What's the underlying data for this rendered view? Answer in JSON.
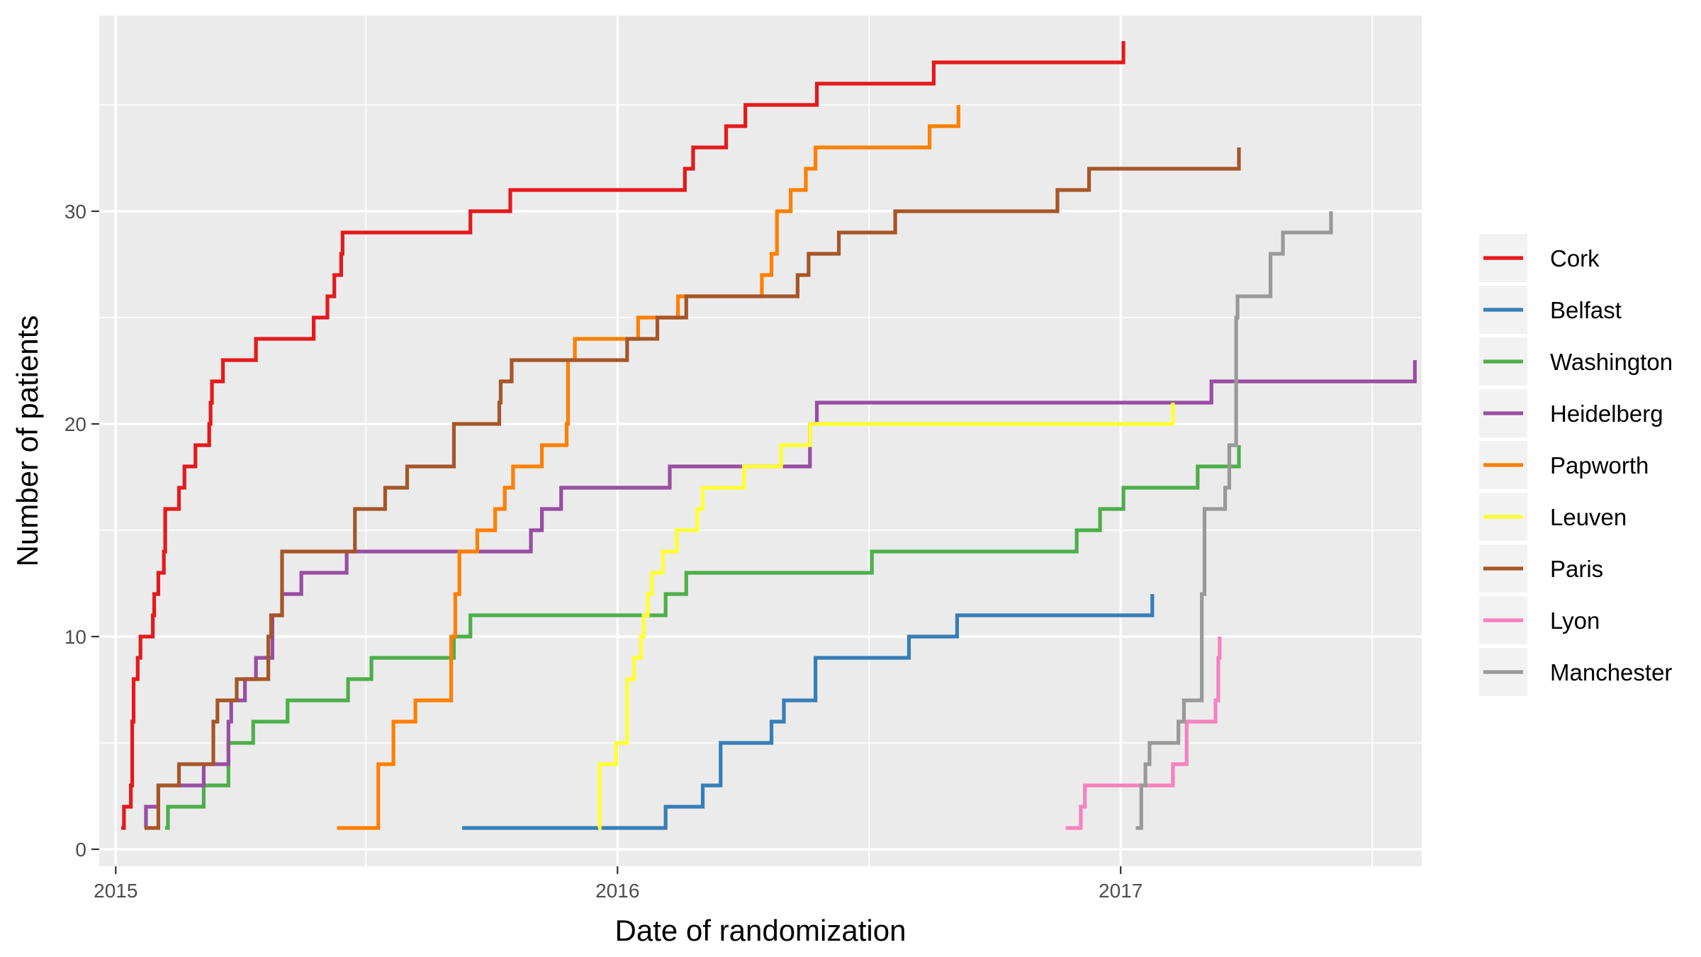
{
  "chart_data": {
    "type": "line",
    "step": true,
    "xlabel": "Date of randomization",
    "ylabel": "Number of patients",
    "xlim": [
      "2014-12-20",
      "2017-08-08"
    ],
    "ylim": [
      -0.8,
      39.2
    ],
    "x_ticks": [
      {
        "date": "2015-01-01",
        "label": "2015"
      },
      {
        "date": "2016-01-01",
        "label": "2016"
      },
      {
        "date": "2017-01-01",
        "label": "2017"
      }
    ],
    "y_ticks": [
      {
        "value": 0,
        "label": "0"
      },
      {
        "value": 10,
        "label": "10"
      },
      {
        "value": 20,
        "label": "20"
      },
      {
        "value": 30,
        "label": "30"
      }
    ],
    "grid": true,
    "legend_position": "right",
    "series": [
      {
        "name": "Cork",
        "color": "#E41A1C",
        "points": [
          [
            "2015-01-05",
            1
          ],
          [
            "2015-01-07",
            2
          ],
          [
            "2015-01-12",
            3
          ],
          [
            "2015-01-13",
            6
          ],
          [
            "2015-01-14",
            8
          ],
          [
            "2015-01-17",
            9
          ],
          [
            "2015-01-19",
            10
          ],
          [
            "2015-01-28",
            11
          ],
          [
            "2015-01-29",
            12
          ],
          [
            "2015-02-01",
            13
          ],
          [
            "2015-02-05",
            14
          ],
          [
            "2015-02-06",
            16
          ],
          [
            "2015-02-16",
            17
          ],
          [
            "2015-02-20",
            18
          ],
          [
            "2015-02-28",
            19
          ],
          [
            "2015-03-10",
            20
          ],
          [
            "2015-03-11",
            21
          ],
          [
            "2015-03-12",
            22
          ],
          [
            "2015-03-20",
            23
          ],
          [
            "2015-04-13",
            24
          ],
          [
            "2015-05-25",
            25
          ],
          [
            "2015-06-04",
            26
          ],
          [
            "2015-06-09",
            27
          ],
          [
            "2015-06-14",
            28
          ],
          [
            "2015-06-15",
            29
          ],
          [
            "2015-09-16",
            30
          ],
          [
            "2015-10-15",
            31
          ],
          [
            "2016-02-19",
            32
          ],
          [
            "2016-02-25",
            33
          ],
          [
            "2016-03-20",
            34
          ],
          [
            "2016-04-03",
            35
          ],
          [
            "2016-05-25",
            36
          ],
          [
            "2016-08-18",
            37
          ],
          [
            "2017-01-03",
            38
          ]
        ]
      },
      {
        "name": "Belfast",
        "color": "#377EB8",
        "points": [
          [
            "2015-09-10",
            1
          ],
          [
            "2016-02-05",
            2
          ],
          [
            "2016-03-03",
            3
          ],
          [
            "2016-03-16",
            5
          ],
          [
            "2016-04-22",
            6
          ],
          [
            "2016-05-01",
            7
          ],
          [
            "2016-05-24",
            9
          ],
          [
            "2016-07-31",
            10
          ],
          [
            "2016-09-04",
            11
          ],
          [
            "2017-01-24",
            12
          ]
        ]
      },
      {
        "name": "Washington",
        "color": "#4DAF4A",
        "points": [
          [
            "2015-02-06",
            1
          ],
          [
            "2015-02-08",
            2
          ],
          [
            "2015-03-06",
            3
          ],
          [
            "2015-03-24",
            5
          ],
          [
            "2015-04-11",
            6
          ],
          [
            "2015-05-06",
            7
          ],
          [
            "2015-06-19",
            8
          ],
          [
            "2015-07-06",
            9
          ],
          [
            "2015-09-04",
            10
          ],
          [
            "2015-09-16",
            11
          ],
          [
            "2016-02-05",
            12
          ],
          [
            "2016-02-20",
            13
          ],
          [
            "2016-07-04",
            14
          ],
          [
            "2016-11-30",
            15
          ],
          [
            "2016-12-17",
            16
          ],
          [
            "2017-01-03",
            17
          ],
          [
            "2017-02-26",
            18
          ],
          [
            "2017-03-28",
            19
          ]
        ]
      },
      {
        "name": "Heidelberg",
        "color": "#984EA3",
        "points": [
          [
            "2015-01-22",
            1
          ],
          [
            "2015-01-23",
            2
          ],
          [
            "2015-02-01",
            3
          ],
          [
            "2015-03-06",
            4
          ],
          [
            "2015-03-24",
            6
          ],
          [
            "2015-03-26",
            7
          ],
          [
            "2015-04-05",
            8
          ],
          [
            "2015-04-13",
            9
          ],
          [
            "2015-04-25",
            11
          ],
          [
            "2015-05-02",
            12
          ],
          [
            "2015-05-16",
            13
          ],
          [
            "2015-06-18",
            14
          ],
          [
            "2015-10-30",
            15
          ],
          [
            "2015-11-07",
            16
          ],
          [
            "2015-11-21",
            17
          ],
          [
            "2016-02-08",
            18
          ],
          [
            "2016-05-20",
            20
          ],
          [
            "2016-05-25",
            21
          ],
          [
            "2017-03-08",
            22
          ],
          [
            "2017-08-03",
            23
          ]
        ]
      },
      {
        "name": "Papworth",
        "color": "#FF7F00",
        "points": [
          [
            "2015-06-11",
            1
          ],
          [
            "2015-07-11",
            4
          ],
          [
            "2015-07-22",
            6
          ],
          [
            "2015-08-07",
            7
          ],
          [
            "2015-09-02",
            10
          ],
          [
            "2015-09-05",
            12
          ],
          [
            "2015-09-08",
            14
          ],
          [
            "2015-09-21",
            15
          ],
          [
            "2015-10-04",
            16
          ],
          [
            "2015-10-11",
            17
          ],
          [
            "2015-10-17",
            18
          ],
          [
            "2015-11-07",
            19
          ],
          [
            "2015-11-25",
            20
          ],
          [
            "2015-11-26",
            23
          ],
          [
            "2015-12-01",
            24
          ],
          [
            "2016-01-16",
            25
          ],
          [
            "2016-02-14",
            26
          ],
          [
            "2016-04-15",
            27
          ],
          [
            "2016-04-22",
            28
          ],
          [
            "2016-04-26",
            30
          ],
          [
            "2016-05-06",
            31
          ],
          [
            "2016-05-17",
            32
          ],
          [
            "2016-05-24",
            33
          ],
          [
            "2016-08-15",
            34
          ],
          [
            "2016-09-05",
            35
          ]
        ]
      },
      {
        "name": "Leuven",
        "color": "#FFFF33",
        "points": [
          [
            "2015-12-18",
            1
          ],
          [
            "2015-12-19",
            4
          ],
          [
            "2015-12-31",
            5
          ],
          [
            "2016-01-08",
            8
          ],
          [
            "2016-01-13",
            9
          ],
          [
            "2016-01-18",
            10
          ],
          [
            "2016-01-20",
            11
          ],
          [
            "2016-01-23",
            12
          ],
          [
            "2016-01-26",
            13
          ],
          [
            "2016-02-03",
            14
          ],
          [
            "2016-02-13",
            15
          ],
          [
            "2016-02-28",
            16
          ],
          [
            "2016-03-03",
            17
          ],
          [
            "2016-04-02",
            18
          ],
          [
            "2016-04-29",
            19
          ],
          [
            "2016-05-20",
            20
          ],
          [
            "2017-02-08",
            21
          ]
        ]
      },
      {
        "name": "Paris",
        "color": "#A65628",
        "points": [
          [
            "2015-01-22",
            1
          ],
          [
            "2015-02-01",
            3
          ],
          [
            "2015-02-16",
            4
          ],
          [
            "2015-03-13",
            6
          ],
          [
            "2015-03-16",
            7
          ],
          [
            "2015-03-30",
            8
          ],
          [
            "2015-04-22",
            10
          ],
          [
            "2015-04-24",
            11
          ],
          [
            "2015-05-02",
            14
          ],
          [
            "2015-06-24",
            16
          ],
          [
            "2015-07-16",
            17
          ],
          [
            "2015-08-01",
            18
          ],
          [
            "2015-09-04",
            20
          ],
          [
            "2015-10-07",
            21
          ],
          [
            "2015-10-08",
            22
          ],
          [
            "2015-10-16",
            23
          ],
          [
            "2016-01-08",
            24
          ],
          [
            "2016-01-30",
            25
          ],
          [
            "2016-02-20",
            26
          ],
          [
            "2016-05-11",
            27
          ],
          [
            "2016-05-19",
            28
          ],
          [
            "2016-06-10",
            29
          ],
          [
            "2016-07-21",
            30
          ],
          [
            "2016-11-16",
            31
          ],
          [
            "2016-12-09",
            32
          ],
          [
            "2017-03-28",
            33
          ]
        ]
      },
      {
        "name": "Lyon",
        "color": "#F781BF",
        "points": [
          [
            "2016-11-22",
            1
          ],
          [
            "2016-12-03",
            2
          ],
          [
            "2016-12-06",
            3
          ],
          [
            "2017-02-08",
            4
          ],
          [
            "2017-02-18",
            6
          ],
          [
            "2017-03-11",
            7
          ],
          [
            "2017-03-13",
            9
          ],
          [
            "2017-03-14",
            10
          ]
        ]
      },
      {
        "name": "Manchester",
        "color": "#999999",
        "points": [
          [
            "2017-01-12",
            1
          ],
          [
            "2017-01-16",
            3
          ],
          [
            "2017-01-19",
            4
          ],
          [
            "2017-01-22",
            5
          ],
          [
            "2017-02-12",
            6
          ],
          [
            "2017-02-16",
            7
          ],
          [
            "2017-03-01",
            12
          ],
          [
            "2017-03-03",
            16
          ],
          [
            "2017-03-18",
            17
          ],
          [
            "2017-03-21",
            19
          ],
          [
            "2017-03-26",
            25
          ],
          [
            "2017-03-27",
            26
          ],
          [
            "2017-04-20",
            28
          ],
          [
            "2017-04-29",
            29
          ],
          [
            "2017-06-03",
            30
          ]
        ]
      }
    ]
  }
}
